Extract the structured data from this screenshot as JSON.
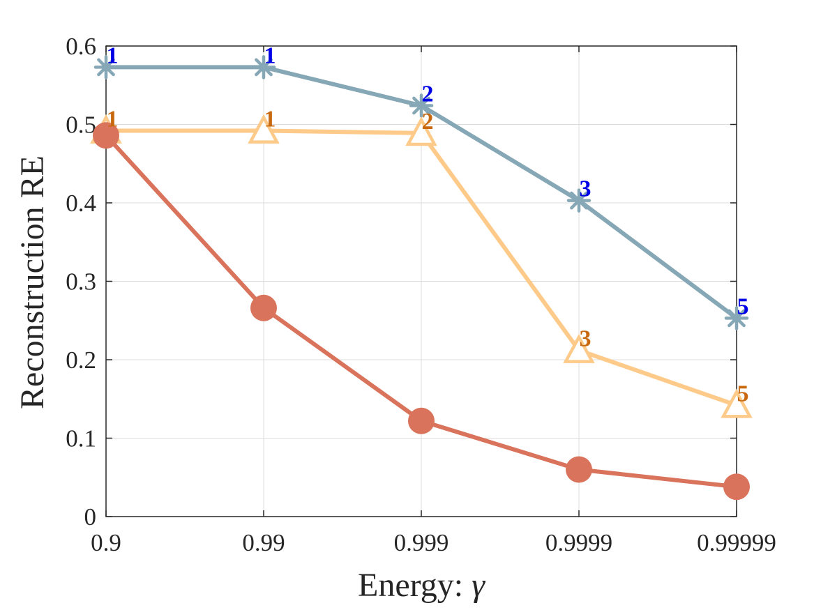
{
  "chart_data": {
    "type": "line",
    "title": "",
    "xlabel": "Energy: ",
    "xlabel_symbol": "γ",
    "ylabel": "Reconstruction RE",
    "categories": [
      "0.9",
      "0.99",
      "0.999",
      "0.9999",
      "0.99999"
    ],
    "ylim": [
      0,
      0.6
    ],
    "yticks": [
      "0",
      "0.1",
      "0.2",
      "0.3",
      "0.4",
      "0.5",
      "0.6"
    ],
    "grid": true,
    "series": [
      {
        "name": "series-blue-star",
        "marker": "star",
        "color": "#86A7B5",
        "values": [
          0.573,
          0.573,
          0.524,
          0.403,
          0.253
        ],
        "annotations": [
          "1",
          "1",
          "2",
          "3",
          "5"
        ],
        "annotation_color": "#0000E6"
      },
      {
        "name": "series-orange-triangle",
        "marker": "triangle",
        "color": "#FDCA8A",
        "values": [
          0.492,
          0.492,
          0.489,
          0.212,
          0.142
        ],
        "annotations": [
          "1",
          "1",
          "2",
          "3",
          "5"
        ],
        "annotation_color": "#C9690F"
      },
      {
        "name": "series-red-circle",
        "marker": "circle",
        "color": "#D9735B",
        "values": [
          0.486,
          0.266,
          0.122,
          0.06,
          0.038
        ],
        "annotations": [],
        "annotation_color": ""
      }
    ]
  }
}
